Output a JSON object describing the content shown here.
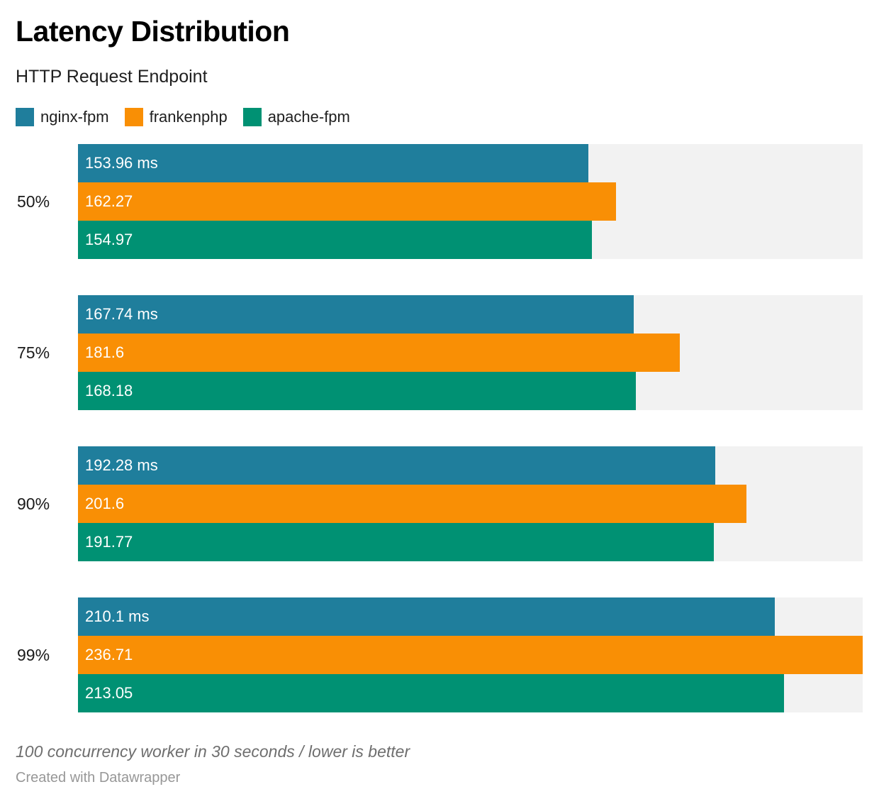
{
  "title": "Latency Distribution",
  "subtitle": "HTTP Request Endpoint",
  "legend": {
    "items": [
      {
        "label": "nginx-fpm",
        "color": "#1f7e9c"
      },
      {
        "label": "frankenphp",
        "color": "#f98f05"
      },
      {
        "label": "apache-fpm",
        "color": "#009173"
      }
    ]
  },
  "footer": {
    "note": "100 concurrency worker in 30 seconds / lower is better",
    "credit": "Created with Datawrapper"
  },
  "colors": {
    "track": "#f2f2f2",
    "background": "#ffffff",
    "bar_label_text": "#ffffff"
  },
  "chart_data": {
    "type": "bar",
    "orientation": "horizontal",
    "title": "Latency Distribution",
    "subtitle": "HTTP Request Endpoint",
    "categories": [
      "50%",
      "75%",
      "90%",
      "99%"
    ],
    "series": [
      {
        "name": "nginx-fpm",
        "color": "#1f7e9c",
        "values": [
          153.96,
          167.74,
          192.28,
          210.1
        ],
        "labels": [
          "153.96 ms",
          "167.74 ms",
          "192.28 ms",
          "210.1 ms"
        ]
      },
      {
        "name": "frankenphp",
        "color": "#f98f05",
        "values": [
          162.27,
          181.6,
          201.6,
          236.71
        ],
        "labels": [
          "162.27",
          "181.6",
          "201.6",
          "236.71"
        ]
      },
      {
        "name": "apache-fpm",
        "color": "#009173",
        "values": [
          154.97,
          168.18,
          191.77,
          213.05
        ],
        "labels": [
          "154.97",
          "168.18",
          "191.77",
          "213.05"
        ]
      }
    ],
    "value_unit": "ms",
    "xlim": [
      0,
      236.71
    ],
    "grid": false,
    "legend_position": "top",
    "value_labels": "inside-start",
    "note": "lower is better"
  }
}
